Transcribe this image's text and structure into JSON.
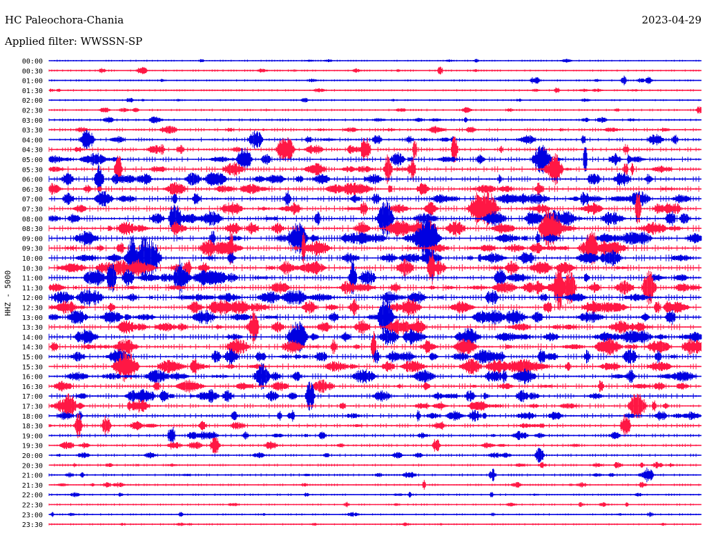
{
  "header": {
    "station": "HC Paleochora-Chania",
    "date": "2023-04-29",
    "filter": "Applied filter: WWSSN-SP"
  },
  "chart_data": {
    "type": "line",
    "title": "HC Paleochora-Chania",
    "ylabel": "HHZ - 5000",
    "row_labels": [
      "00:00",
      "00:30",
      "01:00",
      "01:30",
      "02:00",
      "02:30",
      "03:00",
      "03:30",
      "04:00",
      "04:30",
      "05:00",
      "05:30",
      "06:00",
      "06:30",
      "07:00",
      "07:30",
      "08:00",
      "08:30",
      "09:00",
      "09:30",
      "10:00",
      "10:30",
      "11:00",
      "11:30",
      "12:00",
      "12:30",
      "13:00",
      "13:30",
      "14:00",
      "14:30",
      "15:00",
      "15:30",
      "16:00",
      "16:30",
      "17:00",
      "17:30",
      "18:00",
      "18:30",
      "19:00",
      "19:30",
      "20:00",
      "20:30",
      "21:00",
      "21:30",
      "22:00",
      "22:30",
      "23:00",
      "23:30"
    ],
    "activity_level": [
      0.12,
      0.18,
      0.16,
      0.2,
      0.14,
      0.22,
      0.3,
      0.45,
      0.55,
      0.6,
      0.75,
      0.8,
      0.85,
      0.85,
      0.9,
      0.9,
      0.95,
      0.95,
      0.95,
      0.95,
      1.0,
      1.0,
      1.0,
      1.0,
      1.0,
      1.0,
      0.95,
      0.95,
      0.95,
      0.95,
      0.9,
      0.9,
      0.85,
      0.8,
      0.75,
      0.7,
      0.65,
      0.55,
      0.45,
      0.4,
      0.35,
      0.3,
      0.3,
      0.25,
      0.2,
      0.2,
      0.18,
      0.15
    ],
    "colors": [
      "#0000e0",
      "#ff1744"
    ],
    "legend": "none"
  }
}
